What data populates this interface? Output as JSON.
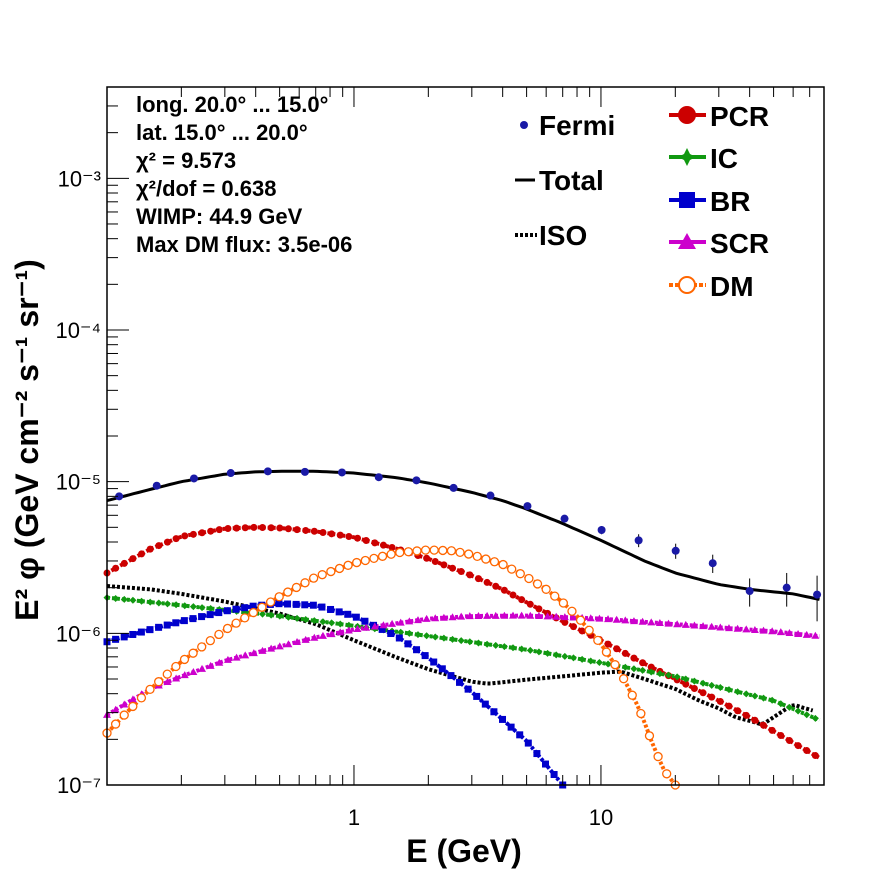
{
  "chart_data": {
    "type": "line",
    "xlabel": "E (GeV)",
    "ylabel": "E² φ (GeV cm⁻² s⁻¹ sr⁻¹)",
    "xscale": "log",
    "yscale": "log",
    "xlim": [
      0.1,
      80
    ],
    "ylim": [
      1e-07,
      0.004
    ],
    "x_tick_labels": [
      "1",
      "10"
    ],
    "y_tick_labels": [
      "10⁻⁷",
      "10⁻⁶",
      "10⁻⁵",
      "10⁻⁴",
      "10⁻³"
    ],
    "annotations": [
      "long. 20.0° ... 15.0°",
      "lat. 15.0° ... 20.0°",
      "χ² = 9.573",
      "χ²/dof = 0.638",
      "WIMP: 44.9 GeV",
      "Max DM flux: 3.5e-06"
    ],
    "legend_left": [
      "Fermi",
      "Total",
      "ISO"
    ],
    "legend_right": [
      "PCR",
      "IC",
      "BR",
      "SCR",
      "DM"
    ],
    "series": [
      {
        "name": "Fermi",
        "style": "points",
        "color": "#1a1aa6",
        "x": [
          0.112,
          0.159,
          0.225,
          0.317,
          0.448,
          0.633,
          0.894,
          1.26,
          1.79,
          2.53,
          3.57,
          5.04,
          7.12,
          10.06,
          14.21,
          20.07,
          28.35,
          40.0,
          56.5,
          75.0
        ],
        "y": [
          8e-06,
          9.4e-06,
          1.05e-05,
          1.14e-05,
          1.17e-05,
          1.16e-05,
          1.15e-05,
          1.07e-05,
          1.02e-05,
          9.1e-06,
          8.1e-06,
          6.9e-06,
          5.7e-06,
          4.8e-06,
          4.1e-06,
          3.5e-06,
          2.9e-06,
          1.9e-06,
          2e-06,
          1.8e-06
        ],
        "err": [
          2e-07,
          2e-07,
          2e-07,
          2e-07,
          2e-07,
          2e-07,
          2e-07,
          2e-07,
          2e-07,
          2e-07,
          2e-07,
          2e-07,
          2e-07,
          3e-07,
          4e-07,
          4e-07,
          4e-07,
          4e-07,
          5e-07,
          6e-07
        ]
      },
      {
        "name": "Total",
        "style": "solid",
        "color": "#000000",
        "x": [
          0.1,
          0.15,
          0.2,
          0.3,
          0.4,
          0.5,
          0.7,
          1.0,
          1.5,
          2.0,
          3.0,
          4.0,
          5.0,
          7.0,
          10.0,
          15.0,
          20.0,
          30.0,
          40.0,
          60.0,
          80.0
        ],
        "y": [
          7.5e-06,
          8.9e-06,
          1e-05,
          1.12e-05,
          1.16e-05,
          1.17e-05,
          1.17e-05,
          1.14e-05,
          1.06e-05,
          9.8e-06,
          8.5e-06,
          7.5e-06,
          6.6e-06,
          5.3e-06,
          4.1e-06,
          3e-06,
          2.5e-06,
          2.1e-06,
          1.95e-06,
          1.82e-06,
          1.65e-06
        ]
      },
      {
        "name": "ISO",
        "style": "dotted",
        "color": "#000000",
        "x": [
          0.1,
          0.15,
          0.2,
          0.3,
          0.5,
          0.7,
          1.0,
          1.5,
          2.0,
          3.0,
          3.5,
          5.0,
          7.0,
          10.0,
          12.0,
          15.0,
          20.0,
          25.0,
          30.0,
          35.0,
          40.0,
          45.0,
          50.0,
          55.0,
          60.0,
          65.0,
          72.0
        ],
        "y": [
          2.05e-06,
          1.95e-06,
          1.82e-06,
          1.62e-06,
          1.35e-06,
          1.15e-06,
          9e-07,
          6.9e-07,
          5.8e-07,
          4.8e-07,
          4.65e-07,
          4.95e-07,
          5.2e-07,
          5.5e-07,
          5.6e-07,
          5e-07,
          4.3e-07,
          3.6e-07,
          3.2e-07,
          2.8e-07,
          2.65e-07,
          2.5e-07,
          2.8e-07,
          3.1e-07,
          3.4e-07,
          3.25e-07,
          3.1e-07
        ]
      },
      {
        "name": "PCR",
        "style": "dotted-markers",
        "color": "#cc0000",
        "x": [
          0.1,
          0.15,
          0.2,
          0.3,
          0.4,
          0.5,
          0.7,
          1.0,
          1.5,
          2.0,
          3.0,
          4.0,
          5.0,
          7.0,
          10.0,
          15.0,
          20.0,
          30.0,
          40.0,
          60.0,
          80.0
        ],
        "y": [
          2.5e-06,
          3.6e-06,
          4.35e-06,
          4.9e-06,
          5e-06,
          4.95e-06,
          4.7e-06,
          4.3e-06,
          3.6e-06,
          3.1e-06,
          2.4e-06,
          1.95e-06,
          1.6e-06,
          1.2e-06,
          9e-07,
          6.3e-07,
          5e-07,
          3.6e-07,
          2.8e-07,
          1.9e-07,
          1.45e-07
        ]
      },
      {
        "name": "IC",
        "style": "dotted-markers",
        "color": "#119911",
        "x": [
          0.1,
          0.2,
          0.5,
          1.0,
          2.0,
          5.0,
          10.0,
          20.0,
          50.0,
          80.0
        ],
        "y": [
          1.72e-06,
          1.53e-06,
          1.3e-06,
          1.12e-06,
          9.6e-07,
          7.8e-07,
          6.4e-07,
          5.2e-07,
          3.6e-07,
          2.6e-07
        ]
      },
      {
        "name": "BR",
        "style": "dotted-markers",
        "color": "#0000cc",
        "x": [
          0.1,
          0.15,
          0.2,
          0.3,
          0.4,
          0.5,
          0.7,
          1.0,
          1.5,
          2.0,
          3.0,
          4.0,
          5.0,
          7.0
        ],
        "y": [
          8.8e-07,
          1.06e-06,
          1.2e-06,
          1.4e-06,
          1.52e-06,
          1.57e-06,
          1.53e-06,
          1.3e-06,
          9.5e-07,
          6.9e-07,
          4.1e-07,
          2.7e-07,
          1.95e-07,
          1e-07
        ]
      },
      {
        "name": "SCR",
        "style": "dotted-markers",
        "color": "#cc00cc",
        "x": [
          0.1,
          0.15,
          0.2,
          0.3,
          0.5,
          0.7,
          1.0,
          2.0,
          3.0,
          5.0,
          10.0,
          20.0,
          50.0,
          80.0
        ],
        "y": [
          2.9e-07,
          4.3e-07,
          5.2e-07,
          6.6e-07,
          8.2e-07,
          9.4e-07,
          1.06e-06,
          1.25e-06,
          1.3e-06,
          1.31e-06,
          1.25e-06,
          1.15e-06,
          1.03e-06,
          9.5e-07
        ]
      },
      {
        "name": "DM",
        "style": "dotted-markers",
        "color": "#ff6600",
        "x": [
          0.1,
          0.12,
          0.15,
          0.2,
          0.3,
          0.4,
          0.5,
          0.7,
          1.0,
          1.5,
          2.0,
          2.5,
          3.0,
          4.0,
          5.0,
          6.0,
          7.0,
          8.0,
          10.0,
          12.0,
          14.0,
          15.0,
          16.0,
          18.0,
          20.0
        ],
        "y": [
          2.2e-07,
          3e-07,
          4.3e-07,
          6.5e-07,
          1.05e-06,
          1.4e-06,
          1.75e-06,
          2.35e-06,
          2.9e-06,
          3.4e-06,
          3.55e-06,
          3.5e-06,
          3.3e-06,
          2.85e-06,
          2.35e-06,
          1.95e-06,
          1.6e-06,
          1.3e-06,
          8.5e-07,
          5.5e-07,
          3.4e-07,
          2.6e-07,
          1.95e-07,
          1.25e-07,
          1e-07
        ]
      }
    ]
  }
}
